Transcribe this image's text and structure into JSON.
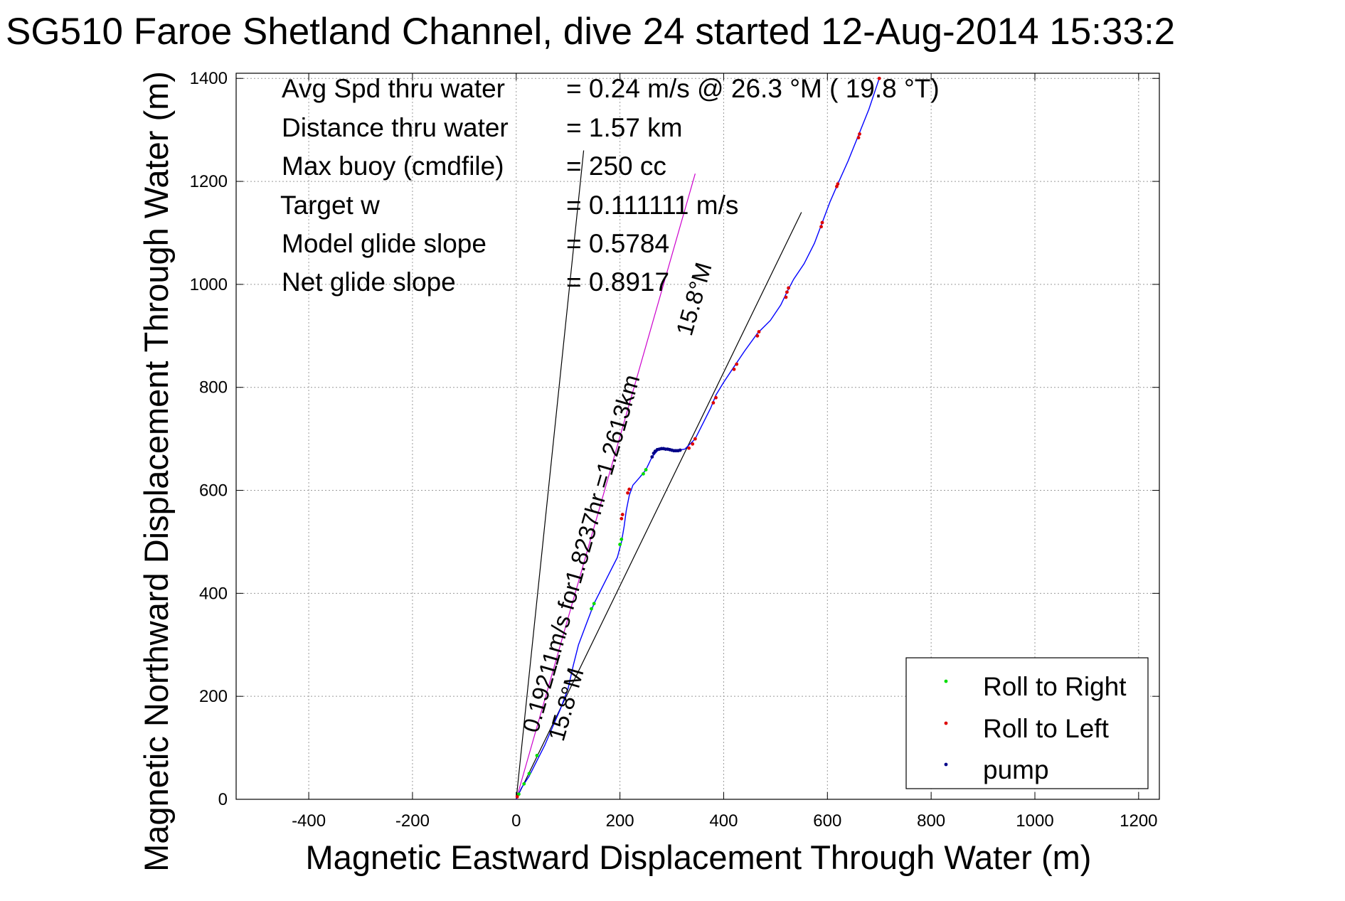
{
  "chart_data": {
    "type": "line",
    "title": "SG510 Faroe Shetland Channel, dive 24 started 12-Aug-2014 15:33:2",
    "xlabel": "Magnetic Eastward Displacement Through Water (m)",
    "ylabel": "Magnetic Northward Displacement Through Water (m)",
    "xlim": [
      -540,
      1240
    ],
    "ylim": [
      0,
      1410
    ],
    "xticks": [
      -400,
      -200,
      0,
      200,
      400,
      600,
      800,
      1000,
      1200
    ],
    "yticks": [
      0,
      200,
      400,
      600,
      800,
      1000,
      1200,
      1400
    ],
    "grid": true,
    "legend_position": "bottom-right",
    "stats": [
      {
        "label": "Avg Spd thru water",
        "value": "=  0.24 m/s @  26.3 °M ( 19.8 °T)"
      },
      {
        "label": "Distance thru water",
        "value": "=  1.57 km"
      },
      {
        "label": "Max buoy (cmdfile)",
        "value": "= 250 cc"
      },
      {
        "label": "Target w",
        "value": "= 0.111111 m/s"
      },
      {
        "label": "Model glide slope",
        "value": "= 0.5784"
      },
      {
        "label": "Net glide slope",
        "value": "= 0.8917"
      }
    ],
    "annotations": {
      "drift_label": "0.19211m/s for1.8237hr =1.2613km",
      "heading_label": "15.8°M"
    },
    "reference_lines": [
      {
        "name": "line-a",
        "color": "#000000",
        "points": [
          [
            0,
            0
          ],
          [
            130,
            1260
          ]
        ]
      },
      {
        "name": "line-b",
        "color": "#000000",
        "points": [
          [
            0,
            0
          ],
          [
            550,
            1140
          ]
        ]
      },
      {
        "name": "current-line",
        "color": "#cc00cc",
        "points": [
          [
            0,
            0
          ],
          [
            345,
            1215
          ]
        ]
      }
    ],
    "series": [
      {
        "name": "",
        "style": "line",
        "color": "#0000ff",
        "points": [
          [
            0,
            0
          ],
          [
            10,
            22
          ],
          [
            25,
            45
          ],
          [
            40,
            75
          ],
          [
            55,
            105
          ],
          [
            70,
            140
          ],
          [
            85,
            175
          ],
          [
            100,
            215
          ],
          [
            110,
            260
          ],
          [
            120,
            300
          ],
          [
            135,
            340
          ],
          [
            150,
            380
          ],
          [
            165,
            410
          ],
          [
            180,
            440
          ],
          [
            195,
            470
          ],
          [
            203,
            500
          ],
          [
            208,
            530
          ],
          [
            212,
            560
          ],
          [
            218,
            590
          ],
          [
            225,
            610
          ],
          [
            238,
            625
          ],
          [
            250,
            640
          ],
          [
            262,
            665
          ],
          [
            275,
            680
          ],
          [
            290,
            680
          ],
          [
            305,
            677
          ],
          [
            325,
            680
          ],
          [
            345,
            700
          ],
          [
            360,
            730
          ],
          [
            375,
            760
          ],
          [
            385,
            785
          ],
          [
            400,
            810
          ],
          [
            420,
            840
          ],
          [
            440,
            870
          ],
          [
            465,
            905
          ],
          [
            490,
            930
          ],
          [
            510,
            960
          ],
          [
            522,
            985
          ],
          [
            535,
            1010
          ],
          [
            555,
            1040
          ],
          [
            575,
            1080
          ],
          [
            590,
            1120
          ],
          [
            605,
            1160
          ],
          [
            620,
            1195
          ],
          [
            640,
            1240
          ],
          [
            660,
            1290
          ],
          [
            680,
            1340
          ],
          [
            700,
            1400
          ]
        ]
      },
      {
        "name": "Roll to Right",
        "style": "marker",
        "color": "#00dd00",
        "points": [
          [
            5,
            10
          ],
          [
            15,
            30
          ],
          [
            25,
            50
          ],
          [
            40,
            85
          ],
          [
            145,
            370
          ],
          [
            150,
            380
          ],
          [
            200,
            495
          ],
          [
            203,
            505
          ],
          [
            245,
            632
          ],
          [
            250,
            640
          ]
        ]
      },
      {
        "name": "Roll to Left",
        "style": "marker",
        "color": "#dd0000",
        "points": [
          [
            2,
            5
          ],
          [
            203,
            545
          ],
          [
            205,
            553
          ],
          [
            215,
            595
          ],
          [
            218,
            602
          ],
          [
            333,
            682
          ],
          [
            340,
            690
          ],
          [
            345,
            700
          ],
          [
            380,
            770
          ],
          [
            385,
            780
          ],
          [
            420,
            835
          ],
          [
            425,
            845
          ],
          [
            465,
            900
          ],
          [
            468,
            908
          ],
          [
            520,
            975
          ],
          [
            522,
            985
          ],
          [
            525,
            993
          ],
          [
            588,
            1112
          ],
          [
            590,
            1120
          ],
          [
            618,
            1190
          ],
          [
            620,
            1195
          ],
          [
            660,
            1285
          ],
          [
            662,
            1292
          ],
          [
            700,
            1400
          ]
        ]
      },
      {
        "name": "pump",
        "style": "marker",
        "color": "#000088",
        "points": [
          [
            262,
            665
          ],
          [
            265,
            672
          ],
          [
            268,
            676
          ],
          [
            272,
            679
          ],
          [
            276,
            680
          ],
          [
            280,
            681
          ],
          [
            284,
            681
          ],
          [
            288,
            680
          ],
          [
            292,
            680
          ],
          [
            296,
            679
          ],
          [
            300,
            678
          ],
          [
            304,
            677
          ],
          [
            308,
            677
          ],
          [
            312,
            677
          ],
          [
            316,
            678
          ]
        ]
      }
    ]
  }
}
